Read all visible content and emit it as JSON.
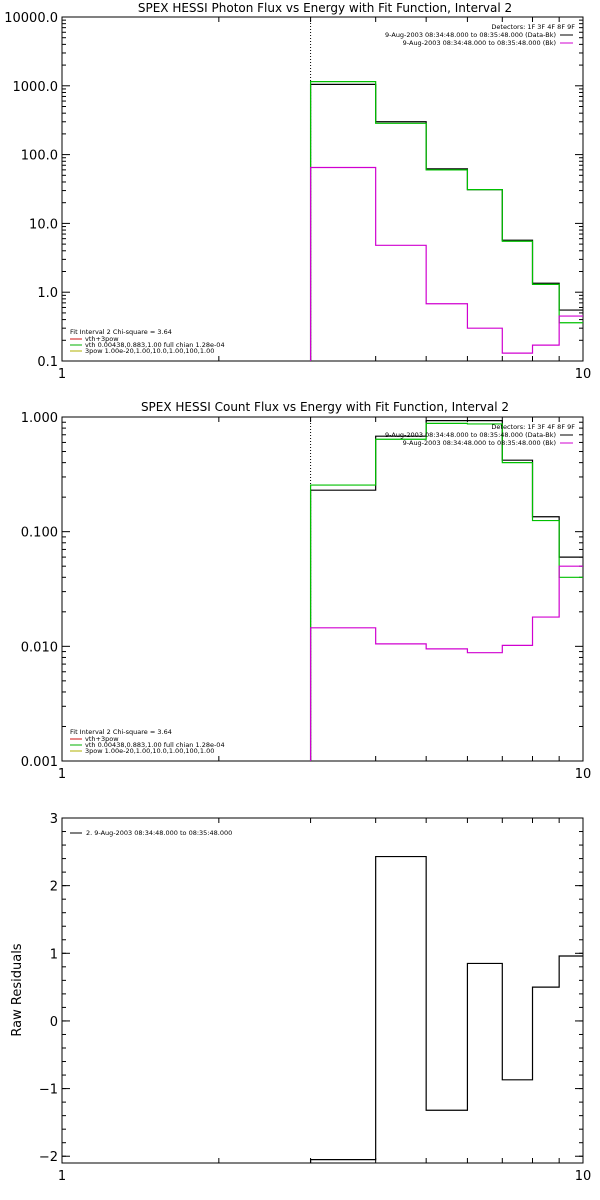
{
  "chart_data": [
    {
      "type": "line",
      "title": "SPEX HESSI Photon Flux vs Energy with Fit Function, Interval 2",
      "xscale": "log",
      "yscale": "log",
      "xlim": [
        1,
        10
      ],
      "ylim": [
        0.1,
        10000
      ],
      "xtick_labels": [
        "1",
        "10"
      ],
      "ytick_labels": [
        "0.1",
        "1.0",
        "10.0",
        "100.0",
        "1000.0",
        "10000.0"
      ],
      "ytick_values": [
        0.1,
        1,
        10,
        100,
        1000,
        10000
      ],
      "vline_x": 3.0,
      "header_legend": {
        "detectors": "Detectors: 1F 3F 4F 8F 9F",
        "entries": [
          {
            "label": "9-Aug-2003 08:34:48.000 to 08:35:48.000 (Data-Bk)",
            "color": "#000000"
          },
          {
            "label": "9-Aug-2003 08:34:48.000 to 08:35:48.000 (Bk)",
            "color": "#d000d0"
          }
        ]
      },
      "fit_legend": {
        "title": "Fit Interval 2   Chi-square = 3.64",
        "entries": [
          {
            "label": "vth+3pow",
            "color": "#d01010"
          },
          {
            "label": "vth 0.00438,0.883,1.00   full chian 1.28e-04",
            "color": "#00b000"
          },
          {
            "label": "3pow 1.00e-20,1.00,10.0,1.00,100,1.00",
            "color": "#b0b000"
          }
        ]
      },
      "bin_edges": [
        3,
        4,
        5,
        6,
        7,
        8,
        9,
        10
      ],
      "series": [
        {
          "name": "9-Aug-2003 08:34:48.000 to 08:35:48.000 (Data-Bk)",
          "color": "#000000",
          "values": [
            1050,
            300,
            62,
            31,
            5.7,
            1.35,
            0.55
          ]
        },
        {
          "name": "vth+3pow",
          "color": "#00c000",
          "values": [
            1150,
            285,
            60,
            31,
            5.5,
            1.3,
            0.36
          ]
        },
        {
          "name": "9-Aug-2003 08:34:48.000 to 08:35:48.000 (Bk)",
          "color": "#d000d0",
          "values": [
            65,
            4.8,
            0.68,
            0.3,
            0.13,
            0.17,
            0.45
          ]
        }
      ]
    },
    {
      "type": "line",
      "title": "SPEX HESSI Count Flux vs Energy with Fit Function, Interval 2",
      "xscale": "log",
      "yscale": "log",
      "xlim": [
        1,
        10
      ],
      "ylim": [
        0.001,
        1.0
      ],
      "xtick_labels": [
        "1",
        "10"
      ],
      "ytick_labels": [
        "0.001",
        "0.010",
        "0.100",
        "1.000"
      ],
      "ytick_values": [
        0.001,
        0.01,
        0.1,
        1.0
      ],
      "vline_x": 3.0,
      "header_legend": {
        "detectors": "Detectors: 1F 3F 4F 8F 9F",
        "entries": [
          {
            "label": "9-Aug-2003 08:34:48.000 to 08:35:48.000 (Data-Bk)",
            "color": "#000000"
          },
          {
            "label": "9-Aug-2003 08:34:48.000 to 08:35:48.000 (Bk)",
            "color": "#d000d0"
          }
        ]
      },
      "fit_legend": {
        "title": "Fit Interval 2   Chi-square = 3.64",
        "entries": [
          {
            "label": "vth+3pow",
            "color": "#d01010"
          },
          {
            "label": "vth 0.00438,0.883,1.00   full chian 1.28e-04",
            "color": "#00b000"
          },
          {
            "label": "3pow 1.00e-20,1.00,10.0,1.00,100,1.00",
            "color": "#b0b000"
          }
        ]
      },
      "bin_edges": [
        3,
        4,
        5,
        6,
        7,
        8,
        9,
        10
      ],
      "series": [
        {
          "name": "9-Aug-2003 08:34:48.000 to 08:35:48.000 (Data-Bk)",
          "color": "#000000",
          "values": [
            0.23,
            0.68,
            0.93,
            0.93,
            0.42,
            0.135,
            0.06
          ]
        },
        {
          "name": "vth+3pow",
          "color": "#00c000",
          "values": [
            0.255,
            0.64,
            0.88,
            0.87,
            0.4,
            0.125,
            0.04
          ]
        },
        {
          "name": "9-Aug-2003 08:34:48.000 to 08:35:48.000 (Bk)",
          "color": "#d000d0",
          "values": [
            0.0145,
            0.0105,
            0.0095,
            0.0088,
            0.0102,
            0.018,
            0.05
          ]
        }
      ]
    },
    {
      "type": "line",
      "title": "",
      "xscale": "log",
      "yscale": "linear",
      "xlim": [
        1,
        10
      ],
      "ylim": [
        -2.1,
        3.0
      ],
      "xtick_labels": [
        "1",
        "10"
      ],
      "ytick_labels": [
        "−2",
        "−1",
        "0",
        "1",
        "2",
        "3"
      ],
      "ytick_values": [
        -2,
        -1,
        0,
        1,
        2,
        3
      ],
      "ylabel": "Raw Residuals",
      "legend": {
        "entries": [
          {
            "label": "2.  9-Aug-2003 08:34:48.000 to 08:35:48.000",
            "color": "#000000"
          }
        ]
      },
      "bin_edges": [
        3,
        4,
        5,
        6,
        7,
        8,
        9,
        10
      ],
      "series": [
        {
          "name": "2.  9-Aug-2003 08:34:48.000 to 08:35:48.000",
          "color": "#000000",
          "values": [
            -2.05,
            2.43,
            -1.32,
            0.85,
            -0.87,
            0.5,
            0.96
          ]
        }
      ]
    }
  ]
}
